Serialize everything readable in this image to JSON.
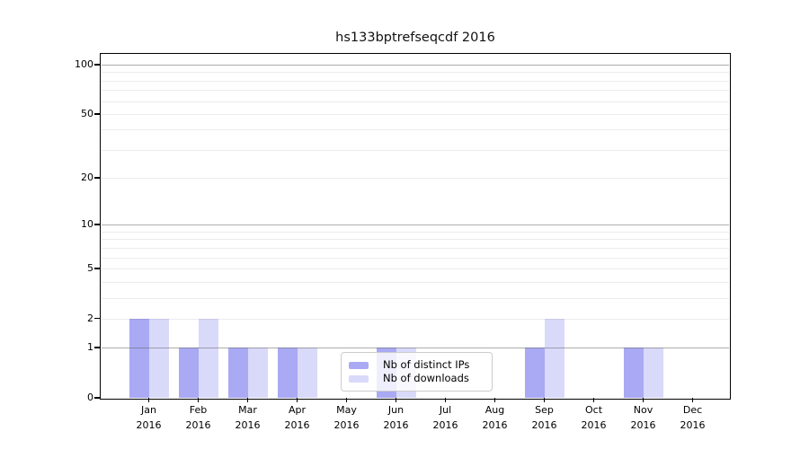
{
  "chart_data": {
    "type": "bar",
    "title": "hs133bptrefseqcdf 2016",
    "categories": [
      "Jan",
      "Feb",
      "Mar",
      "Apr",
      "May",
      "Jun",
      "Jul",
      "Aug",
      "Sep",
      "Oct",
      "Nov",
      "Dec"
    ],
    "category_sublabel": "2016",
    "series": [
      {
        "name": "Nb of distinct IPs",
        "color": "#a9a9f4",
        "values": [
          2,
          1,
          1,
          1,
          0,
          1,
          0,
          0,
          1,
          0,
          1,
          0
        ]
      },
      {
        "name": "Nb of downloads",
        "color": "#d9d9fa",
        "values": [
          2,
          2,
          1,
          1,
          0,
          1,
          0,
          0,
          2,
          0,
          1,
          0
        ]
      }
    ],
    "xlabel": "",
    "ylabel": "",
    "y_scale": "log10(1+x)",
    "y_ticks": [
      0,
      1,
      2,
      5,
      10,
      20,
      50,
      100
    ],
    "y_axis_max": 115,
    "major_gridlines": [
      1,
      10,
      100
    ],
    "minor_gridlines": [
      2,
      3,
      4,
      5,
      6,
      7,
      8,
      9,
      20,
      30,
      40,
      50,
      60,
      70,
      80,
      90
    ],
    "grid": "horizontal, drawn over bars",
    "legend_position": "inside lower-center",
    "colors": {
      "frame": "#000000",
      "major_grid": "#696969",
      "minor_grid": "#ebebeb",
      "legend_border": "#cccccc",
      "background": "#ffffff"
    }
  }
}
